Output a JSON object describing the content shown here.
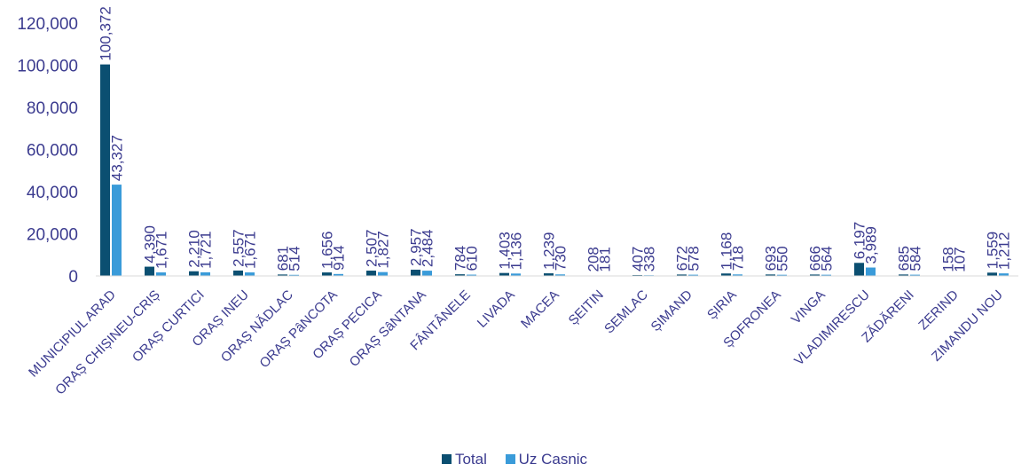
{
  "chart_data": {
    "type": "bar",
    "title": "",
    "xlabel": "",
    "ylabel": "",
    "ylim": [
      0,
      120000
    ],
    "yticks": [
      0,
      20000,
      40000,
      60000,
      80000,
      100000,
      120000
    ],
    "ytick_labels": [
      "0",
      "20,000",
      "40,000",
      "60,000",
      "80,000",
      "100,000",
      "120,000"
    ],
    "grid": false,
    "legend_position": "bottom",
    "categories": [
      "MUNICIPIUL ARAD",
      "ORAȘ CHIȘINEU-CRIȘ",
      "ORAȘ CURTICI",
      "ORAȘ INEU",
      "ORAȘ NĂDLAC",
      "ORAȘ PâNCOTA",
      "ORAȘ PECICA",
      "ORAȘ SâNTANA",
      "FÂNTÂNELE",
      "LIVADA",
      "MACEA",
      "ȘEITIN",
      "SEMLAC",
      "ȘIMAND",
      "ȘIRIA",
      "ȘOFRONEA",
      "VINGA",
      "VLADIMIRESCU",
      "ZĂDĂRENI",
      "ZERIND",
      "ZIMANDU NOU"
    ],
    "series": [
      {
        "name": "Total",
        "color": "#0b4f71",
        "values": [
          100372,
          4390,
          2210,
          2557,
          681,
          1656,
          2507,
          2957,
          784,
          1403,
          1239,
          208,
          407,
          672,
          1168,
          693,
          666,
          6197,
          685,
          158,
          1559
        ],
        "labels": [
          "100,372",
          "4,390",
          "2,210",
          "2,557",
          "681",
          "1,656",
          "2,507",
          "2,957",
          "784",
          "1,403",
          "1,239",
          "208",
          "407",
          "672",
          "1,168",
          "693",
          "666",
          "6,197",
          "685",
          "158",
          "1,559"
        ]
      },
      {
        "name": "Uz Casnic",
        "color": "#3a9bd9",
        "values": [
          43327,
          1671,
          1721,
          1671,
          514,
          914,
          1827,
          2484,
          610,
          1136,
          730,
          181,
          338,
          578,
          718,
          550,
          564,
          3989,
          584,
          107,
          1212
        ],
        "labels": [
          "43,327",
          "1,671",
          "1,721",
          "1,671",
          "514",
          "914",
          "1,827",
          "2,484",
          "610",
          "1,136",
          "730",
          "181",
          "338",
          "578",
          "718",
          "550",
          "564",
          "3,989",
          "584",
          "107",
          "1,212"
        ]
      }
    ]
  }
}
